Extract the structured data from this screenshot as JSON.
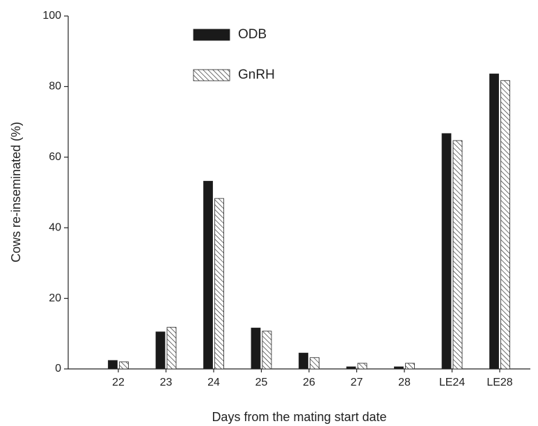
{
  "chart_data": {
    "type": "bar",
    "x_label": "Days from the mating start date",
    "y_label": "Cows re-inseminated (%)",
    "categories": [
      "22",
      "23",
      "24",
      "25",
      "26",
      "27",
      "28",
      "LE24",
      "LE28"
    ],
    "series": [
      {
        "name": "ODB",
        "color": "#1a1a1a",
        "hatch": false,
        "values": [
          2.4,
          10.5,
          53.2,
          11.6,
          4.5,
          0.6,
          0.6,
          66.7,
          83.6
        ]
      },
      {
        "name": "GnRH",
        "color": "#ffffff",
        "hatch": true,
        "values": [
          2.0,
          11.8,
          48.3,
          10.7,
          3.2,
          1.6,
          1.6,
          64.7,
          81.7
        ]
      }
    ],
    "ylim": [
      0,
      100
    ],
    "yticks": [
      0,
      20,
      40,
      60,
      80,
      100
    ],
    "grid": false,
    "legend": "upper center"
  }
}
